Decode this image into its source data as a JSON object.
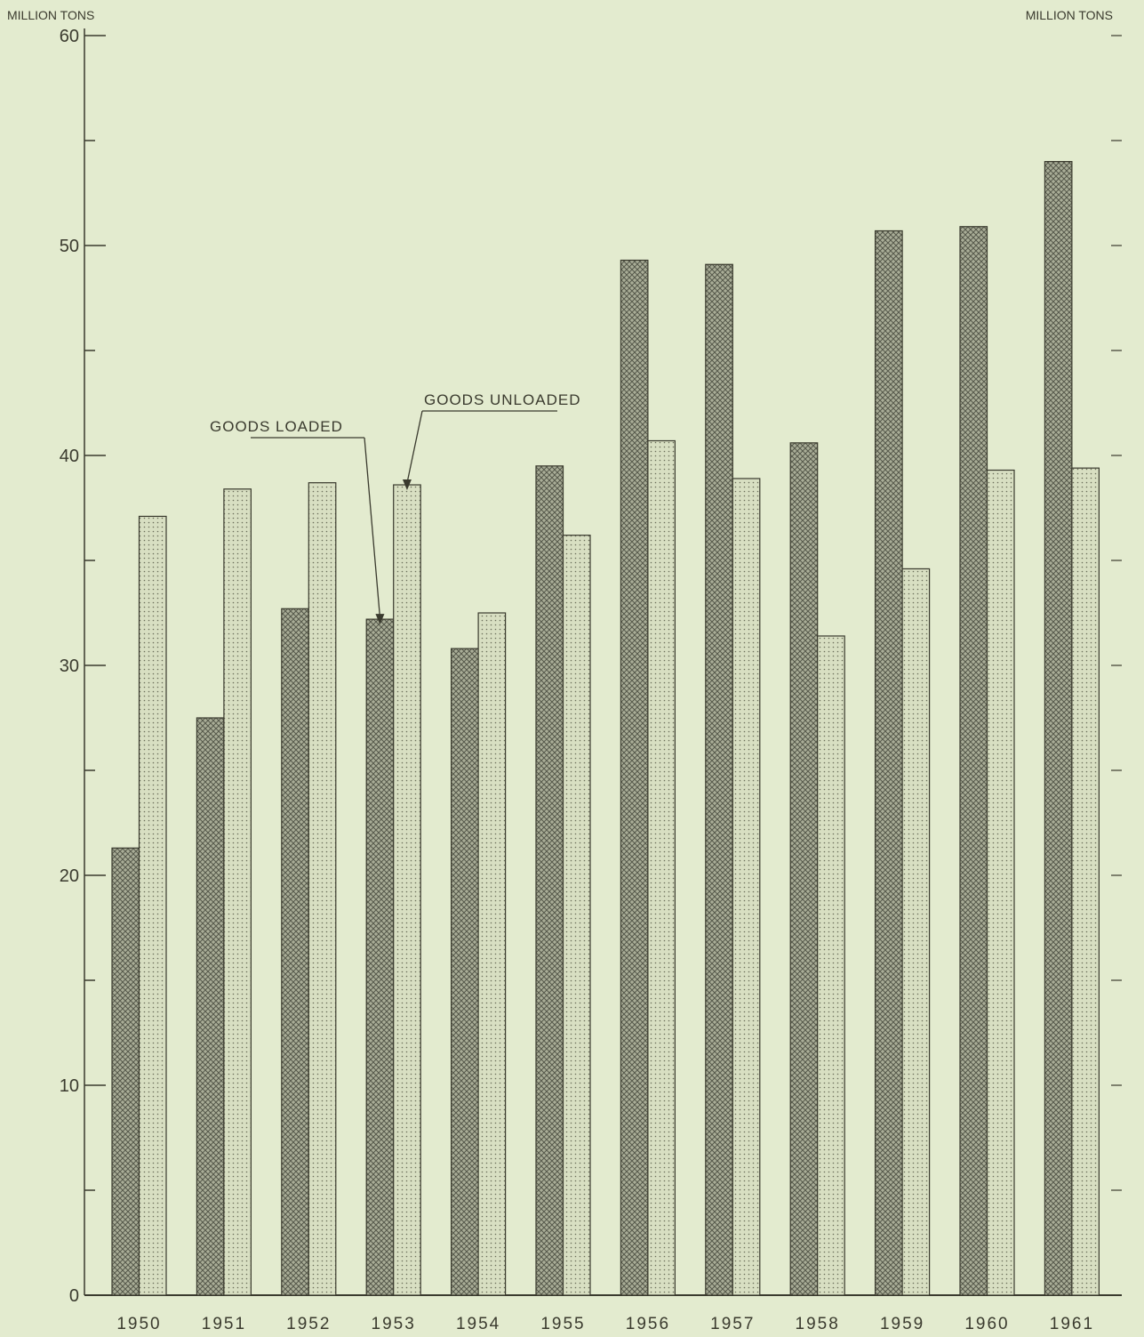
{
  "chart_data": {
    "type": "bar",
    "title": "",
    "ylabel_left": "MILLION TONS",
    "ylabel_right": "MILLION TONS",
    "xlabel": "",
    "categories": [
      "1950",
      "1951",
      "1952",
      "1953",
      "1954",
      "1955",
      "1956",
      "1957",
      "1958",
      "1959",
      "1960",
      "1961"
    ],
    "series": [
      {
        "name": "GOODS LOADED",
        "pattern": "crosshatch",
        "values": [
          21.3,
          27.5,
          32.7,
          32.2,
          30.8,
          39.5,
          49.3,
          49.1,
          40.6,
          50.7,
          50.9,
          54.0
        ]
      },
      {
        "name": "GOODS UNLOADED",
        "pattern": "dotted",
        "values": [
          37.1,
          38.4,
          38.7,
          38.6,
          32.5,
          36.2,
          40.7,
          38.9,
          31.4,
          34.6,
          39.3,
          39.4
        ]
      }
    ],
    "ylim": [
      0,
      60
    ],
    "yticks_major": [
      0,
      10,
      20,
      30,
      40,
      50,
      60
    ],
    "yticks_minor_step": 5,
    "grid": false,
    "legend": "none",
    "annotations": [
      {
        "text": "GOODS LOADED",
        "series": 0,
        "category": "1953"
      },
      {
        "text": "GOODS UNLOADED",
        "series": 1,
        "category": "1953"
      }
    ],
    "colors": {
      "background": "#e3ebcf",
      "ink": "#3a3a2e",
      "bar_dark": "#a9ad97",
      "bar_light": "#d8dfc2"
    }
  }
}
